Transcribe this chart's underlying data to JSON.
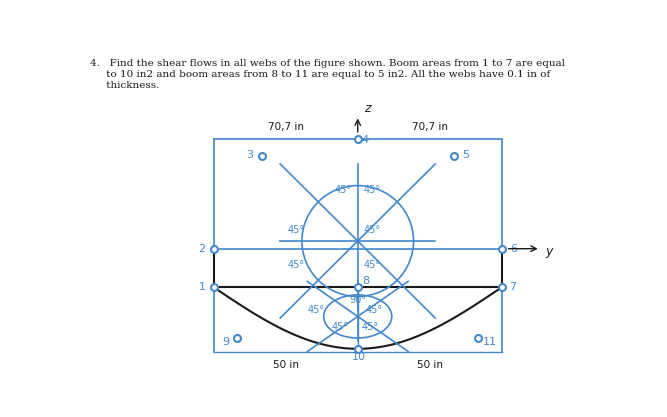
{
  "background_color": "#ffffff",
  "black": "#1a1a1a",
  "blue": "#4488cc",
  "dim_top_left": "70,7 in",
  "dim_top_right": "70,7 in",
  "dim_bot_left": "50 in",
  "dim_bot_right": "50 in",
  "title_lines": [
    "4.   Find the shear flows in all webs of the figure shown. Boom areas from 1 to 7 are equal",
    "     to 10 in2 and boom areas from 8 to 11 are equal to 5 in2. All the webs have 0.1 in of",
    "     thickness."
  ]
}
